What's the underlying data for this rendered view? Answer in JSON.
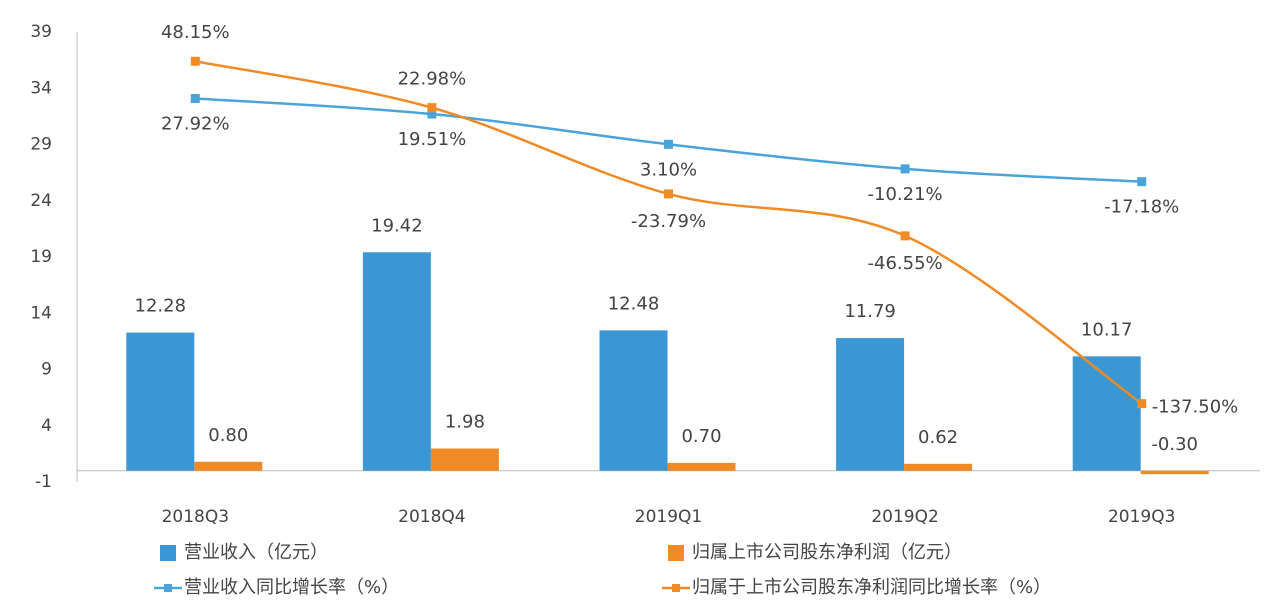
{
  "chart_data": {
    "type": "combo",
    "categories": [
      "2018Q3",
      "2018Q4",
      "2019Q1",
      "2019Q2",
      "2019Q3"
    ],
    "ylim": [
      -1,
      39
    ],
    "yticks": [
      39,
      34,
      29,
      24,
      19,
      14,
      9,
      4,
      -1
    ],
    "y2lim": [
      -180,
      64
    ],
    "series": [
      {
        "name": "营业收入（亿元）",
        "type": "bar",
        "color": "#3b97d3",
        "values": [
          12.28,
          19.42,
          12.48,
          11.79,
          10.17
        ],
        "value_labels": [
          "12.28",
          "19.42",
          "12.48",
          "11.79",
          "10.17"
        ]
      },
      {
        "name": "归属上市公司股东净利润（亿元）",
        "type": "bar",
        "color": "#f08a24",
        "values": [
          0.8,
          1.98,
          0.7,
          0.62,
          -0.3
        ],
        "value_labels": [
          "0.80",
          "1.98",
          "0.70",
          "0.62",
          "-0.30"
        ]
      },
      {
        "name": "营业收入同比增长率（%）",
        "type": "line",
        "axis": "y2",
        "color": "#4aa3d9",
        "values": [
          27.92,
          19.51,
          3.1,
          -10.21,
          -17.18
        ],
        "value_labels": [
          "27.92%",
          "19.51%",
          "3.10%",
          "-10.21%",
          "-17.18%"
        ]
      },
      {
        "name": "归属于上市公司股东净利润同比增长率（%）",
        "type": "line",
        "axis": "y2",
        "color": "#f08a24",
        "values": [
          48.15,
          22.98,
          -23.79,
          -46.55,
          -137.5
        ],
        "value_labels": [
          "48.15%",
          "22.98%",
          "-23.79%",
          "-46.55%",
          "-137.50%"
        ]
      }
    ]
  }
}
